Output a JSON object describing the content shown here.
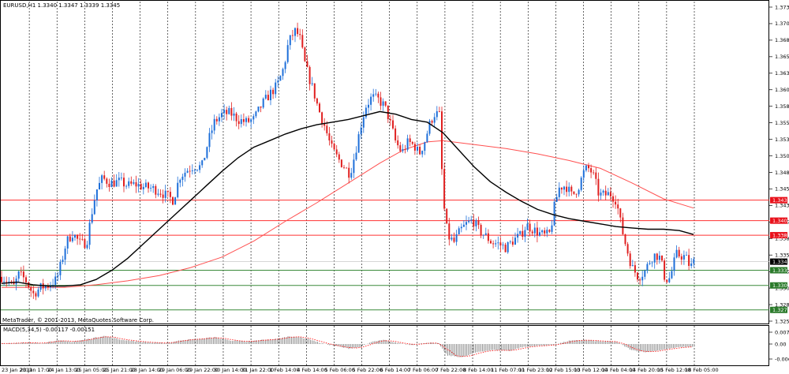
{
  "window": {
    "title": "EURUSD,H1  1.3340 1.3347 1.3339 1.3345"
  },
  "footer": {
    "copyright": "MetaTrader, © 2001-2013, MetaQuotes Software Corp."
  },
  "colors": {
    "bull": "#1e6fd9",
    "bear": "#e02020",
    "ma_fast": "#000000",
    "ma_slow": "#ff5050",
    "hline_resistance": "#ff3030",
    "hline_support": "#3a8a3a",
    "macd_signal": "#ff2020",
    "macd_hist": "#8a8a8a"
  },
  "chart_data": [
    {
      "type": "candlestick",
      "title": "EURUSD,H1  1.3340 1.3347 1.3339 1.3345",
      "ylim": [
        1.3235,
        1.373
      ],
      "y_ticks": [
        "1.3730",
        "1.3705",
        "1.3680",
        "1.3655",
        "1.3630",
        "1.3605",
        "1.3580",
        "1.3555",
        "1.3530",
        "1.3505",
        "1.3480",
        "1.3455",
        "1.3430",
        "1.3405",
        "1.3380",
        "1.3355",
        "1.3330",
        "1.3305",
        "1.3280",
        "1.3255"
      ],
      "x_ticks": [
        "23 Jan 2013",
        "23 Jan 17:00",
        "24 Jan 13:00",
        "25 Jan 05:00",
        "25 Jan 21:00",
        "28 Jan 14:00",
        "29 Jan 06:00",
        "29 Jan 22:00",
        "30 Jan 14:00",
        "31 Jan 22:00",
        "1 Feb 14:00",
        "4 Feb 14:00",
        "5 Feb 06:00",
        "5 Feb 22:00",
        "6 Feb 14:00",
        "7 Feb 06:00",
        "7 Feb 22:00",
        "8 Feb 14:00",
        "11 Feb 07:00",
        "11 Feb 23:00",
        "12 Feb 15:00",
        "13 Feb 12:00",
        "14 Feb 04:00",
        "14 Feb 20:00",
        "15 Feb 12:00",
        "18 Feb 05:00"
      ],
      "price_path": [
        [
          0,
          1.3322
        ],
        [
          8,
          1.3316
        ],
        [
          15,
          1.3306
        ],
        [
          22,
          1.3326
        ],
        [
          30,
          1.3318
        ],
        [
          40,
          1.3296
        ],
        [
          50,
          1.3306
        ],
        [
          60,
          1.331
        ],
        [
          70,
          1.3318
        ],
        [
          76,
          1.3344
        ],
        [
          82,
          1.3374
        ],
        [
          90,
          1.3388
        ],
        [
          100,
          1.3372
        ],
        [
          108,
          1.3374
        ],
        [
          114,
          1.3416
        ],
        [
          120,
          1.3452
        ],
        [
          128,
          1.3471
        ],
        [
          138,
          1.3464
        ],
        [
          150,
          1.3466
        ],
        [
          160,
          1.346
        ],
        [
          170,
          1.3462
        ],
        [
          180,
          1.3458
        ],
        [
          190,
          1.3456
        ],
        [
          200,
          1.3452
        ],
        [
          210,
          1.3444
        ],
        [
          218,
          1.3438
        ],
        [
          226,
          1.3474
        ],
        [
          236,
          1.3484
        ],
        [
          244,
          1.349
        ],
        [
          254,
          1.3488
        ],
        [
          262,
          1.3526
        ],
        [
          270,
          1.3556
        ],
        [
          280,
          1.3568
        ],
        [
          290,
          1.357
        ],
        [
          300,
          1.356
        ],
        [
          310,
          1.3556
        ],
        [
          320,
          1.356
        ],
        [
          330,
          1.3582
        ],
        [
          340,
          1.3598
        ],
        [
          350,
          1.3612
        ],
        [
          358,
          1.3638
        ],
        [
          364,
          1.3676
        ],
        [
          372,
          1.3694
        ],
        [
          378,
          1.3686
        ],
        [
          384,
          1.3648
        ],
        [
          390,
          1.3624
        ],
        [
          396,
          1.3602
        ],
        [
          402,
          1.3576
        ],
        [
          410,
          1.355
        ],
        [
          418,
          1.3518
        ],
        [
          426,
          1.3502
        ],
        [
          434,
          1.349
        ],
        [
          442,
          1.3478
        ],
        [
          448,
          1.3506
        ],
        [
          456,
          1.3552
        ],
        [
          462,
          1.358
        ],
        [
          470,
          1.3594
        ],
        [
          478,
          1.359
        ],
        [
          486,
          1.358
        ],
        [
          492,
          1.356
        ],
        [
          500,
          1.3526
        ],
        [
          508,
          1.351
        ],
        [
          516,
          1.3526
        ],
        [
          524,
          1.352
        ],
        [
          530,
          1.3508
        ],
        [
          536,
          1.3524
        ],
        [
          544,
          1.3556
        ],
        [
          550,
          1.357
        ],
        [
          556,
          1.3566
        ],
        [
          560,
          1.344
        ],
        [
          566,
          1.3384
        ],
        [
          574,
          1.3374
        ],
        [
          582,
          1.3392
        ],
        [
          590,
          1.3402
        ],
        [
          598,
          1.3408
        ],
        [
          606,
          1.3392
        ],
        [
          614,
          1.3384
        ],
        [
          622,
          1.3374
        ],
        [
          630,
          1.3372
        ],
        [
          640,
          1.3366
        ],
        [
          650,
          1.3378
        ],
        [
          658,
          1.3384
        ],
        [
          666,
          1.34
        ],
        [
          674,
          1.3394
        ],
        [
          682,
          1.3388
        ],
        [
          690,
          1.3384
        ],
        [
          696,
          1.3388
        ],
        [
          702,
          1.3432
        ],
        [
          708,
          1.3458
        ],
        [
          716,
          1.346
        ],
        [
          724,
          1.3444
        ],
        [
          732,
          1.3458
        ],
        [
          740,
          1.3484
        ],
        [
          746,
          1.3486
        ],
        [
          752,
          1.3472
        ],
        [
          758,
          1.3446
        ],
        [
          766,
          1.3446
        ],
        [
          772,
          1.3448
        ],
        [
          780,
          1.3438
        ],
        [
          786,
          1.34
        ],
        [
          792,
          1.337
        ],
        [
          800,
          1.3336
        ],
        [
          808,
          1.3322
        ],
        [
          816,
          1.333
        ],
        [
          824,
          1.335
        ],
        [
          830,
          1.3356
        ],
        [
          836,
          1.335
        ],
        [
          842,
          1.3318
        ],
        [
          848,
          1.332
        ],
        [
          856,
          1.3356
        ],
        [
          862,
          1.3354
        ],
        [
          868,
          1.3352
        ],
        [
          874,
          1.3336
        ],
        [
          880,
          1.3348
        ]
      ],
      "ma_fast": [
        [
          0,
          1.3312
        ],
        [
          20,
          1.3314
        ],
        [
          40,
          1.331
        ],
        [
          60,
          1.3308
        ],
        [
          80,
          1.3308
        ],
        [
          100,
          1.331
        ],
        [
          120,
          1.3318
        ],
        [
          140,
          1.3332
        ],
        [
          160,
          1.335
        ],
        [
          180,
          1.3372
        ],
        [
          200,
          1.3394
        ],
        [
          220,
          1.3416
        ],
        [
          240,
          1.3438
        ],
        [
          260,
          1.346
        ],
        [
          280,
          1.3482
        ],
        [
          300,
          1.3502
        ],
        [
          320,
          1.3518
        ],
        [
          340,
          1.3528
        ],
        [
          360,
          1.3538
        ],
        [
          380,
          1.3546
        ],
        [
          400,
          1.3552
        ],
        [
          420,
          1.3556
        ],
        [
          440,
          1.356
        ],
        [
          460,
          1.3566
        ],
        [
          480,
          1.3572
        ],
        [
          500,
          1.3568
        ],
        [
          520,
          1.356
        ],
        [
          540,
          1.3556
        ],
        [
          560,
          1.354
        ],
        [
          580,
          1.3514
        ],
        [
          600,
          1.3488
        ],
        [
          620,
          1.3466
        ],
        [
          640,
          1.345
        ],
        [
          660,
          1.3436
        ],
        [
          680,
          1.3424
        ],
        [
          700,
          1.3416
        ],
        [
          720,
          1.341
        ],
        [
          740,
          1.3406
        ],
        [
          760,
          1.3402
        ],
        [
          780,
          1.3398
        ],
        [
          800,
          1.3396
        ],
        [
          820,
          1.3394
        ],
        [
          840,
          1.3394
        ],
        [
          860,
          1.3392
        ],
        [
          878,
          1.3386
        ]
      ],
      "ma_slow": [
        [
          0,
          1.3306
        ],
        [
          40,
          1.3306
        ],
        [
          80,
          1.3306
        ],
        [
          120,
          1.331
        ],
        [
          160,
          1.3316
        ],
        [
          200,
          1.3324
        ],
        [
          240,
          1.3336
        ],
        [
          280,
          1.3352
        ],
        [
          320,
          1.3376
        ],
        [
          360,
          1.3406
        ],
        [
          400,
          1.3434
        ],
        [
          440,
          1.3464
        ],
        [
          480,
          1.3494
        ],
        [
          510,
          1.3514
        ],
        [
          540,
          1.3526
        ],
        [
          560,
          1.3528
        ],
        [
          600,
          1.3522
        ],
        [
          640,
          1.3516
        ],
        [
          680,
          1.3508
        ],
        [
          720,
          1.3498
        ],
        [
          760,
          1.3486
        ],
        [
          800,
          1.3464
        ],
        [
          840,
          1.344
        ],
        [
          878,
          1.3426
        ]
      ],
      "horizontal_levels": [
        {
          "value": 1.3438,
          "label": "1.3438",
          "kind": "resistance"
        },
        {
          "value": 1.3407,
          "label": "1.3407",
          "kind": "resistance"
        },
        {
          "value": 1.3385,
          "label": "1.3385",
          "kind": "resistance"
        },
        {
          "value": 1.3332,
          "label": "1.3332",
          "kind": "support"
        },
        {
          "value": 1.3309,
          "label": "1.3309",
          "kind": "support"
        },
        {
          "value": 1.3272,
          "label": "1.3272",
          "kind": "support"
        }
      ],
      "current_price": {
        "value": 1.3345,
        "label": "1.3345"
      }
    },
    {
      "type": "bar",
      "title": "MACD(5,34,5) -0.00117 -0.00151",
      "ylim": [
        -0.007,
        0.0078
      ],
      "y_ticks": [
        "0.00776",
        "0.00",
        "-0.00658"
      ],
      "macd_path": [
        [
          0,
          0.0002
        ],
        [
          30,
          0.0006
        ],
        [
          50,
          0.0003
        ],
        [
          70,
          0.0016
        ],
        [
          90,
          0.001
        ],
        [
          110,
          0.0022
        ],
        [
          130,
          0.0036
        ],
        [
          150,
          0.002
        ],
        [
          170,
          0.0012
        ],
        [
          190,
          0.0006
        ],
        [
          210,
          0.0004
        ],
        [
          230,
          0.0018
        ],
        [
          250,
          0.0022
        ],
        [
          270,
          0.003
        ],
        [
          290,
          0.0016
        ],
        [
          310,
          0.001
        ],
        [
          330,
          0.0018
        ],
        [
          350,
          0.0022
        ],
        [
          365,
          0.0034
        ],
        [
          378,
          0.003
        ],
        [
          392,
          0.002
        ],
        [
          405,
          0.0004
        ],
        [
          420,
          -0.0006
        ],
        [
          440,
          -0.002
        ],
        [
          455,
          -0.0014
        ],
        [
          470,
          0.001
        ],
        [
          485,
          0.0018
        ],
        [
          500,
          0.0006
        ],
        [
          520,
          -0.0004
        ],
        [
          540,
          0.0006
        ],
        [
          555,
          0.0002
        ],
        [
          565,
          -0.005
        ],
        [
          585,
          -0.0058
        ],
        [
          605,
          -0.0034
        ],
        [
          625,
          -0.0026
        ],
        [
          645,
          -0.003
        ],
        [
          660,
          -0.0014
        ],
        [
          680,
          -0.0008
        ],
        [
          700,
          -0.0004
        ],
        [
          720,
          0.0014
        ],
        [
          740,
          0.0018
        ],
        [
          760,
          0.0012
        ],
        [
          780,
          0.001
        ],
        [
          800,
          -0.0028
        ],
        [
          820,
          -0.0036
        ],
        [
          840,
          -0.0024
        ],
        [
          860,
          -0.0014
        ],
        [
          880,
          -0.0012
        ]
      ]
    }
  ]
}
